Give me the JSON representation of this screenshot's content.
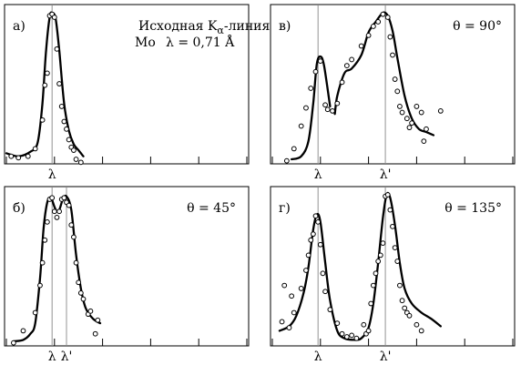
{
  "chart_data": [
    {
      "id": "a",
      "type": "scatter",
      "panel_label": "а)",
      "title_line1_prefix": "Исходная K",
      "title_line1_subscript": "α",
      "title_line1_suffix": "-линия",
      "title_line2_element": "Mo",
      "title_line2_wavelength": "λ = 0,71 Å",
      "angle_label": "",
      "xlim": [
        0,
        100
      ],
      "ylim": [
        0,
        100
      ],
      "axis_ticks": [
        0,
        20,
        40,
        60,
        80,
        100
      ],
      "markers": [
        {
          "label": "λ",
          "x": 19
        }
      ],
      "curve": [
        [
          0,
          7
        ],
        [
          5,
          5
        ],
        [
          10,
          8
        ],
        [
          13,
          14
        ],
        [
          15,
          40
        ],
        [
          16.5,
          75
        ],
        [
          18,
          97
        ],
        [
          19,
          100
        ],
        [
          20.5,
          96
        ],
        [
          22,
          75
        ],
        [
          24,
          40
        ],
        [
          26,
          22
        ],
        [
          28,
          13
        ],
        [
          30,
          9
        ],
        [
          32,
          5
        ]
      ],
      "points": [
        [
          2,
          5
        ],
        [
          5,
          4
        ],
        [
          9,
          5
        ],
        [
          12,
          10
        ],
        [
          15,
          29
        ],
        [
          16,
          52
        ],
        [
          17,
          60
        ],
        [
          18,
          98
        ],
        [
          19,
          99
        ],
        [
          20,
          97
        ],
        [
          21,
          76
        ],
        [
          22,
          53
        ],
        [
          23,
          38
        ],
        [
          24,
          28
        ],
        [
          25,
          23
        ],
        [
          26,
          16
        ],
        [
          27,
          11
        ],
        [
          28,
          9
        ],
        [
          29,
          3
        ],
        [
          31,
          1
        ]
      ]
    },
    {
      "id": "v",
      "type": "scatter",
      "panel_label": "в)",
      "angle_label": "θ = 90°",
      "xlim": [
        0,
        100
      ],
      "ylim": [
        0,
        100
      ],
      "axis_ticks": [
        0,
        20,
        40,
        60,
        80,
        100
      ],
      "markers": [
        {
          "label": "λ",
          "x": 19
        },
        {
          "label": "λ'",
          "x": 47
        }
      ],
      "curve_segments": [
        [
          [
            8,
            3
          ],
          [
            12,
            5
          ],
          [
            15,
            15
          ],
          [
            17,
            40
          ],
          [
            18.5,
            66
          ],
          [
            20,
            71
          ],
          [
            21.5,
            65
          ],
          [
            24,
            38
          ]
        ],
        [
          [
            26,
            33
          ],
          [
            27,
            45
          ],
          [
            30,
            60
          ],
          [
            33,
            63
          ],
          [
            37,
            72
          ],
          [
            40,
            87
          ],
          [
            43,
            94
          ],
          [
            46,
            100
          ],
          [
            48,
            98
          ],
          [
            50,
            88
          ],
          [
            52,
            70
          ],
          [
            55,
            45
          ],
          [
            58,
            30
          ],
          [
            61,
            23
          ],
          [
            64,
            21
          ],
          [
            67,
            19
          ]
        ]
      ],
      "points": [
        [
          6,
          2
        ],
        [
          9,
          10
        ],
        [
          12,
          25
        ],
        [
          14,
          37
        ],
        [
          16,
          50
        ],
        [
          18,
          61
        ],
        [
          20,
          68
        ],
        [
          22,
          39
        ],
        [
          23,
          36
        ],
        [
          25,
          35
        ],
        [
          27,
          40
        ],
        [
          29,
          54
        ],
        [
          31,
          65
        ],
        [
          33,
          69
        ],
        [
          37,
          78
        ],
        [
          40,
          85
        ],
        [
          42,
          91
        ],
        [
          44,
          94
        ],
        [
          46,
          99
        ],
        [
          48,
          97
        ],
        [
          49,
          84
        ],
        [
          50,
          72
        ],
        [
          51,
          56
        ],
        [
          52,
          48
        ],
        [
          53,
          38
        ],
        [
          54,
          34
        ],
        [
          56,
          30
        ],
        [
          57,
          24
        ],
        [
          58,
          27
        ],
        [
          60,
          38
        ],
        [
          62,
          34
        ],
        [
          63,
          15
        ],
        [
          64,
          23
        ],
        [
          70,
          35
        ]
      ]
    },
    {
      "id": "b",
      "type": "scatter",
      "panel_label": "б)",
      "angle_label": "θ = 45°",
      "xlim": [
        0,
        100
      ],
      "ylim": [
        0,
        100
      ],
      "axis_ticks": [
        0,
        20,
        40,
        60,
        80,
        100
      ],
      "markers": [
        {
          "label": "λ",
          "x": 19
        },
        {
          "label": "λ'",
          "x": 25
        }
      ],
      "curve": [
        [
          3,
          3
        ],
        [
          7,
          4
        ],
        [
          10,
          8
        ],
        [
          12,
          15
        ],
        [
          14,
          45
        ],
        [
          15.5,
          78
        ],
        [
          17,
          95
        ],
        [
          18.5,
          98
        ],
        [
          20,
          92
        ],
        [
          21,
          89
        ],
        [
          22,
          90
        ],
        [
          23.5,
          97
        ],
        [
          25,
          99
        ],
        [
          27,
          90
        ],
        [
          29,
          60
        ],
        [
          31,
          38
        ],
        [
          33,
          25
        ],
        [
          36,
          18
        ],
        [
          39,
          15
        ]
      ],
      "points": [
        [
          3,
          2
        ],
        [
          7,
          10
        ],
        [
          12,
          22
        ],
        [
          14,
          40
        ],
        [
          15,
          55
        ],
        [
          16,
          70
        ],
        [
          17,
          82
        ],
        [
          18,
          97
        ],
        [
          19,
          98
        ],
        [
          20,
          89
        ],
        [
          21,
          85
        ],
        [
          22,
          89
        ],
        [
          23,
          97
        ],
        [
          24,
          98
        ],
        [
          25,
          95
        ],
        [
          26,
          93
        ],
        [
          27,
          80
        ],
        [
          28,
          72
        ],
        [
          29,
          55
        ],
        [
          30,
          42
        ],
        [
          31,
          35
        ],
        [
          32,
          31
        ],
        [
          34,
          21
        ],
        [
          35,
          23
        ],
        [
          37,
          8
        ],
        [
          38,
          17
        ]
      ]
    },
    {
      "id": "g",
      "type": "scatter",
      "panel_label": "г)",
      "angle_label": "θ = 135°",
      "xlim": [
        0,
        100
      ],
      "ylim": [
        0,
        100
      ],
      "axis_ticks": [
        0,
        20,
        40,
        60,
        80,
        100
      ],
      "markers": [
        {
          "label": "λ",
          "x": 19
        },
        {
          "label": "λ'",
          "x": 47
        }
      ],
      "curve": [
        [
          3,
          10
        ],
        [
          7,
          13
        ],
        [
          10,
          20
        ],
        [
          13,
          35
        ],
        [
          15,
          52
        ],
        [
          17,
          77
        ],
        [
          18.5,
          87
        ],
        [
          20,
          82
        ],
        [
          22,
          55
        ],
        [
          24,
          30
        ],
        [
          27,
          10
        ],
        [
          30,
          5
        ],
        [
          34,
          4
        ],
        [
          37,
          5
        ],
        [
          40,
          12
        ],
        [
          42,
          28
        ],
        [
          44,
          55
        ],
        [
          46,
          85
        ],
        [
          47.5,
          100
        ],
        [
          49,
          98
        ],
        [
          51,
          80
        ],
        [
          53,
          55
        ],
        [
          55,
          38
        ],
        [
          58,
          28
        ],
        [
          62,
          22
        ],
        [
          66,
          18
        ],
        [
          70,
          13
        ]
      ],
      "points": [
        [
          4,
          16
        ],
        [
          5,
          40
        ],
        [
          7,
          12
        ],
        [
          8,
          33
        ],
        [
          9,
          22
        ],
        [
          12,
          38
        ],
        [
          14,
          50
        ],
        [
          15,
          60
        ],
        [
          16,
          70
        ],
        [
          17,
          74
        ],
        [
          18,
          86
        ],
        [
          19,
          82
        ],
        [
          20,
          67
        ],
        [
          21,
          48
        ],
        [
          22,
          36
        ],
        [
          24,
          24
        ],
        [
          27,
          15
        ],
        [
          29,
          8
        ],
        [
          31,
          6
        ],
        [
          33,
          7
        ],
        [
          35,
          5
        ],
        [
          38,
          14
        ],
        [
          39,
          8
        ],
        [
          40,
          10
        ],
        [
          41,
          28
        ],
        [
          42,
          40
        ],
        [
          43,
          48
        ],
        [
          44,
          56
        ],
        [
          45,
          60
        ],
        [
          46,
          68
        ],
        [
          47,
          99
        ],
        [
          48,
          100
        ],
        [
          49,
          90
        ],
        [
          50,
          79
        ],
        [
          51,
          65
        ],
        [
          52,
          56
        ],
        [
          53,
          40
        ],
        [
          54,
          30
        ],
        [
          55,
          25
        ],
        [
          56,
          22
        ],
        [
          57,
          20
        ],
        [
          60,
          14
        ],
        [
          62,
          10
        ]
      ]
    }
  ]
}
